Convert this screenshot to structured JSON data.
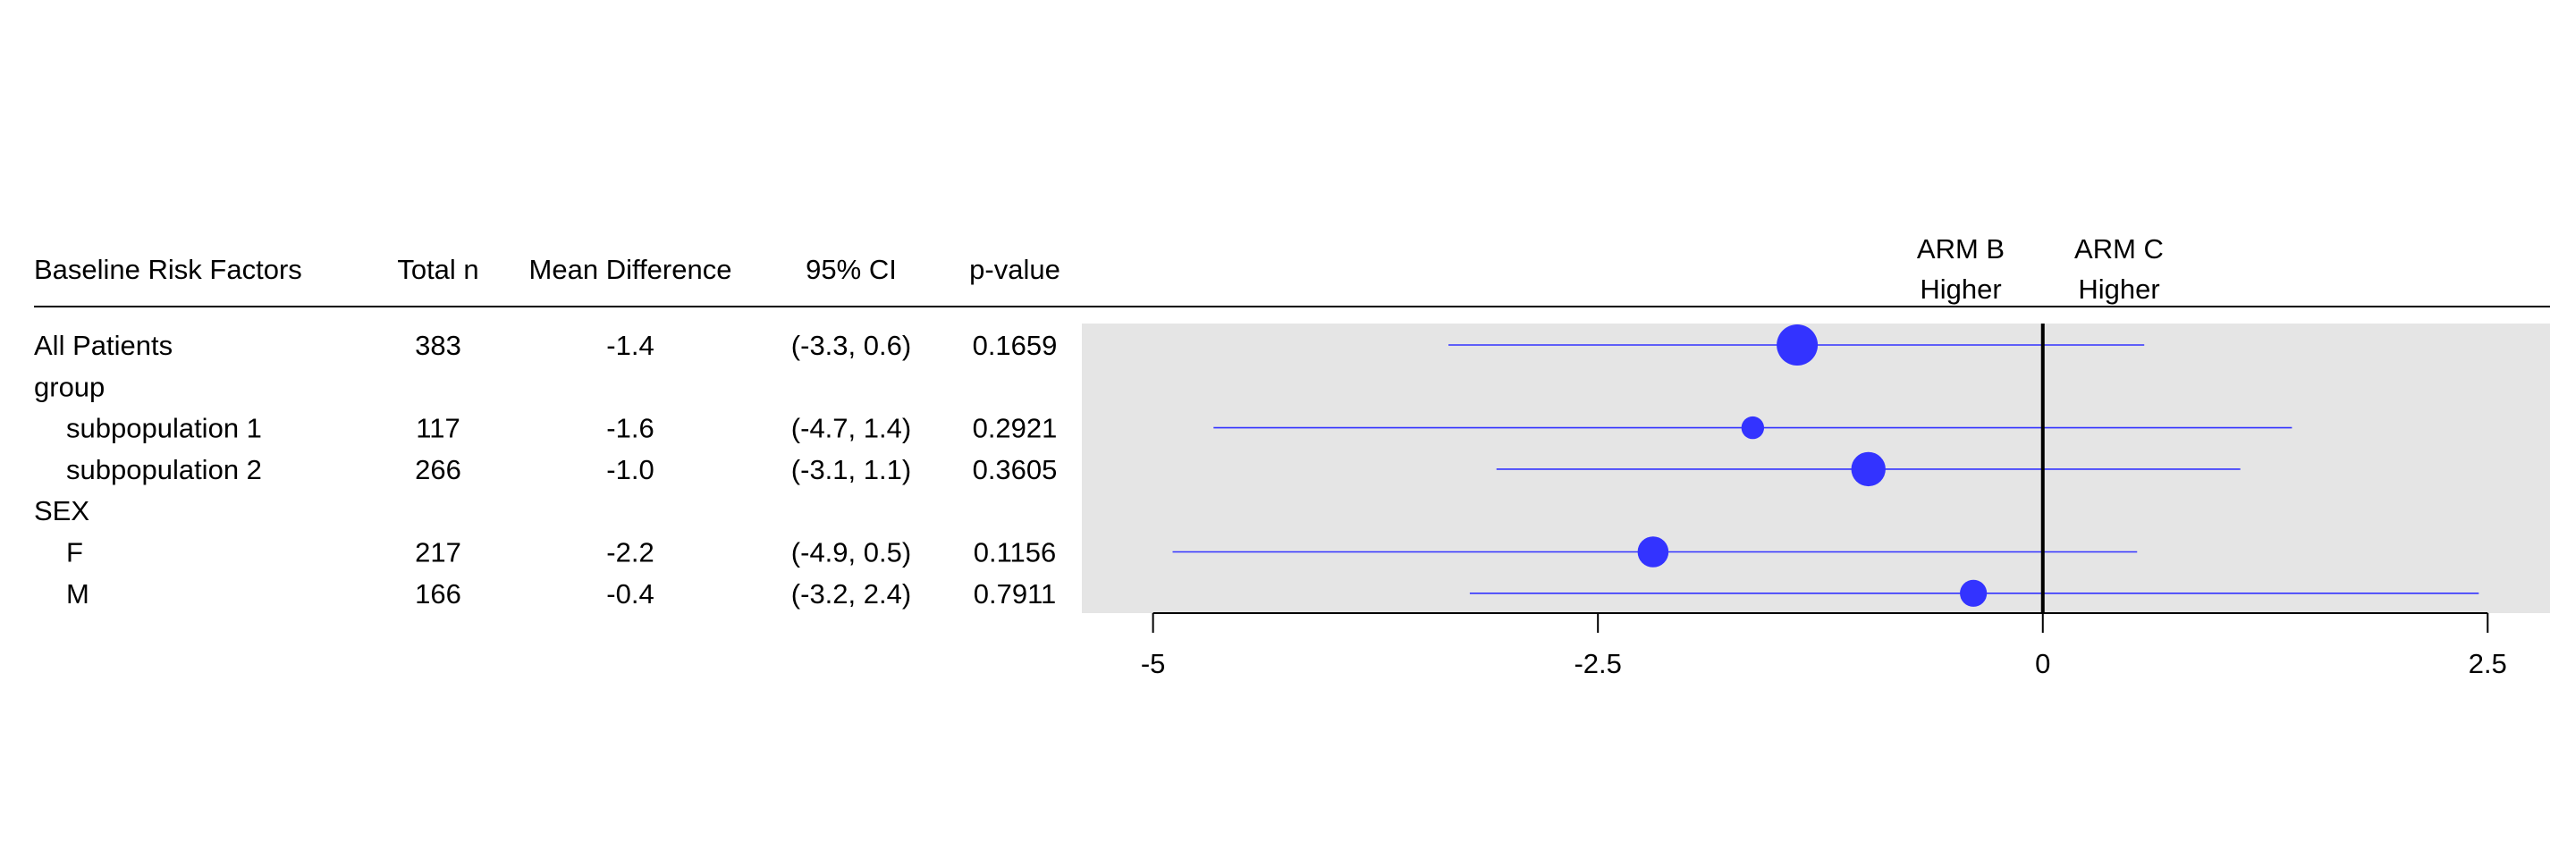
{
  "table": {
    "headers": {
      "factor": "Baseline Risk Factors",
      "n": "Total n",
      "mean": "Mean Difference",
      "ci": "95% CI",
      "p": "p-value"
    },
    "rows": [
      {
        "label": "All Patients",
        "indent": false,
        "n": "383",
        "mean": "-1.4",
        "ci": "(-3.3, 0.6)",
        "p": "0.1659"
      },
      {
        "label": "group",
        "indent": false,
        "n": "",
        "mean": "",
        "ci": "",
        "p": ""
      },
      {
        "label": "subpopulation 1",
        "indent": true,
        "n": "117",
        "mean": "-1.6",
        "ci": "(-4.7, 1.4)",
        "p": "0.2921"
      },
      {
        "label": "subpopulation 2",
        "indent": true,
        "n": "266",
        "mean": "-1.0",
        "ci": "(-3.1, 1.1)",
        "p": "0.3605"
      },
      {
        "label": "SEX",
        "indent": false,
        "n": "",
        "mean": "",
        "ci": "",
        "p": ""
      },
      {
        "label": "F",
        "indent": true,
        "n": "217",
        "mean": "-2.2",
        "ci": "(-4.9, 0.5)",
        "p": "0.1156"
      },
      {
        "label": "M",
        "indent": true,
        "n": "166",
        "mean": "-0.4",
        "ci": "(-3.2, 2.4)",
        "p": "0.7911"
      }
    ]
  },
  "chart_data": {
    "type": "forest",
    "arm_left": {
      "line1": "ARM B",
      "line2": "Higher"
    },
    "arm_right": {
      "line1": "ARM C",
      "line2": "Higher"
    },
    "xlim": [
      -5.4,
      2.85
    ],
    "xticks": [
      -5,
      -2.5,
      0,
      2.5
    ],
    "xtick_labels": [
      "-5",
      "-2.5",
      "0",
      "2.5"
    ],
    "reference_line": 0,
    "points": [
      {
        "row": 0,
        "estimate": -1.38,
        "lower": -3.34,
        "upper": 0.57,
        "n": 383
      },
      {
        "row": 2,
        "estimate": -1.63,
        "lower": -4.66,
        "upper": 1.4,
        "n": 117
      },
      {
        "row": 3,
        "estimate": -0.98,
        "lower": -3.07,
        "upper": 1.11,
        "n": 266
      },
      {
        "row": 5,
        "estimate": -2.19,
        "lower": -4.89,
        "upper": 0.53,
        "n": 217
      },
      {
        "row": 6,
        "estimate": -0.39,
        "lower": -3.22,
        "upper": 2.45,
        "n": 166
      }
    ],
    "colors": {
      "point": "#3333ff",
      "line": "#3333ff",
      "panel": "#e5e5e5",
      "reference": "#000000"
    }
  }
}
